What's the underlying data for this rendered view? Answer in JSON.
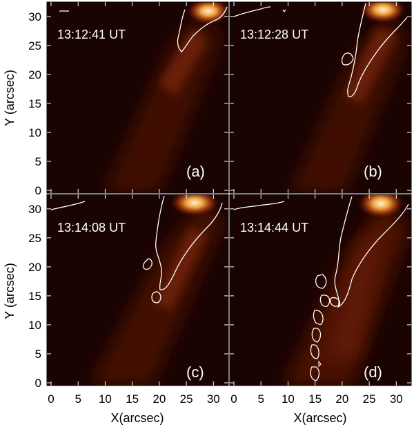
{
  "figure": {
    "y_axis_title": "Y (arcsec)",
    "x_axis_title": "X(arcsec)",
    "y_ticks": [
      "0",
      "5",
      "10",
      "15",
      "20",
      "25",
      "30"
    ],
    "x_ticks_left": [
      "0",
      "5",
      "10",
      "15",
      "20",
      "25",
      "30"
    ],
    "x_ticks_right": [
      "0",
      "5",
      "10",
      "15",
      "20",
      "25",
      "30"
    ]
  },
  "panels": [
    {
      "key": "a",
      "time": "13:12:41  UT",
      "tag": "(a)"
    },
    {
      "key": "b",
      "time": "13:12:28  UT",
      "tag": "(b)"
    },
    {
      "key": "c",
      "time": "13:14:08  UT",
      "tag": "(c)"
    },
    {
      "key": "d",
      "time": "13:14:44  UT",
      "tag": "(d)"
    }
  ],
  "colors": {
    "background": "#1a0402",
    "glow": "#ffd9a0",
    "jet": "#8a2a0c",
    "contour": "#ffffff"
  }
}
